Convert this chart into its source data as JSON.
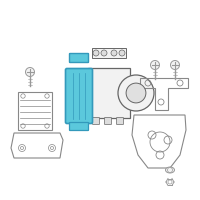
{
  "bg_color": "#ffffff",
  "border_color": "#cccccc",
  "highlight_color": "#5bc8dc",
  "highlight_stroke": "#3399bb",
  "part_stroke": "#888888",
  "part_stroke_dark": "#666666",
  "part_fill": "#f2f2f2",
  "screw_color": "#999999",
  "fig_width": 2.0,
  "fig_height": 2.0,
  "dpi": 100
}
